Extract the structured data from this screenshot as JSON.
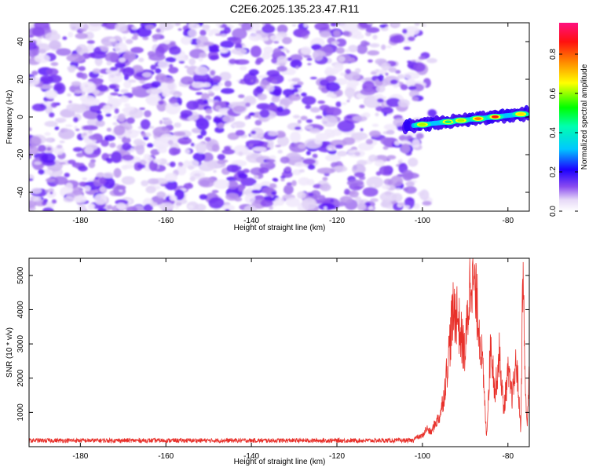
{
  "title": "C2E6.2025.135.23.47.R11",
  "chart_data": [
    {
      "type": "heatmap",
      "xlabel": "Height of straight line (km)",
      "ylabel": "Frequency (Hz)",
      "xlim": [
        -192,
        -75
      ],
      "ylim": [
        -50,
        50
      ],
      "xticks": [
        -180,
        -160,
        -140,
        -120,
        -100,
        -80
      ],
      "yticks": [
        -40,
        -20,
        0,
        20,
        40
      ],
      "colorbar": {
        "label": "Normalized spectral amplitude",
        "range": [
          0,
          0.96
        ],
        "ticks": [
          0.0,
          0.2,
          0.4,
          0.6,
          0.8
        ]
      },
      "signal_band": {
        "x_start": -104,
        "x_end": -75,
        "freq_at_start": -5,
        "freq_at_end": 2,
        "peak_x": [
          -100,
          -94,
          -91,
          -87,
          -83,
          -77
        ],
        "peak_amplitude": [
          0.55,
          0.45,
          0.6,
          0.75,
          0.95,
          0.7
        ]
      },
      "noise_region": {
        "x_start": -192,
        "x_end": -103
      }
    },
    {
      "type": "line",
      "xlabel": "Height of straight line (km)",
      "ylabel": "SNR (10 * v/v)",
      "xlim": [
        -192,
        -75
      ],
      "ylim": [
        0,
        5500
      ],
      "xticks": [
        -180,
        -160,
        -140,
        -120,
        -100,
        -80
      ],
      "yticks": [
        1000,
        2000,
        3000,
        4000,
        5000
      ],
      "color": "#e8302a",
      "baseline_noise": {
        "x_start": -192,
        "x_end": -102,
        "level": 180,
        "spread": 110
      },
      "envelope_points": [
        [
          -102,
          250
        ],
        [
          -100,
          320
        ],
        [
          -99,
          550
        ],
        [
          -98,
          420
        ],
        [
          -97,
          700
        ],
        [
          -96,
          900
        ],
        [
          -95,
          1500
        ],
        [
          -94,
          2600
        ],
        [
          -93,
          3900
        ],
        [
          -92,
          4100
        ],
        [
          -91,
          3300
        ],
        [
          -90,
          2800
        ],
        [
          -89,
          4700
        ],
        [
          -88.5,
          5500
        ],
        [
          -88,
          4900
        ],
        [
          -87,
          4000
        ],
        [
          -86,
          2600
        ],
        [
          -85,
          300
        ],
        [
          -84,
          3200
        ],
        [
          -83,
          1600
        ],
        [
          -82,
          2800
        ],
        [
          -81,
          1100
        ],
        [
          -80,
          2200
        ],
        [
          -79,
          1500
        ],
        [
          -78,
          2600
        ],
        [
          -77,
          500
        ],
        [
          -76.5,
          5300
        ],
        [
          -76,
          2100
        ],
        [
          -75.5,
          500
        ],
        [
          -75,
          2700
        ]
      ]
    }
  ]
}
